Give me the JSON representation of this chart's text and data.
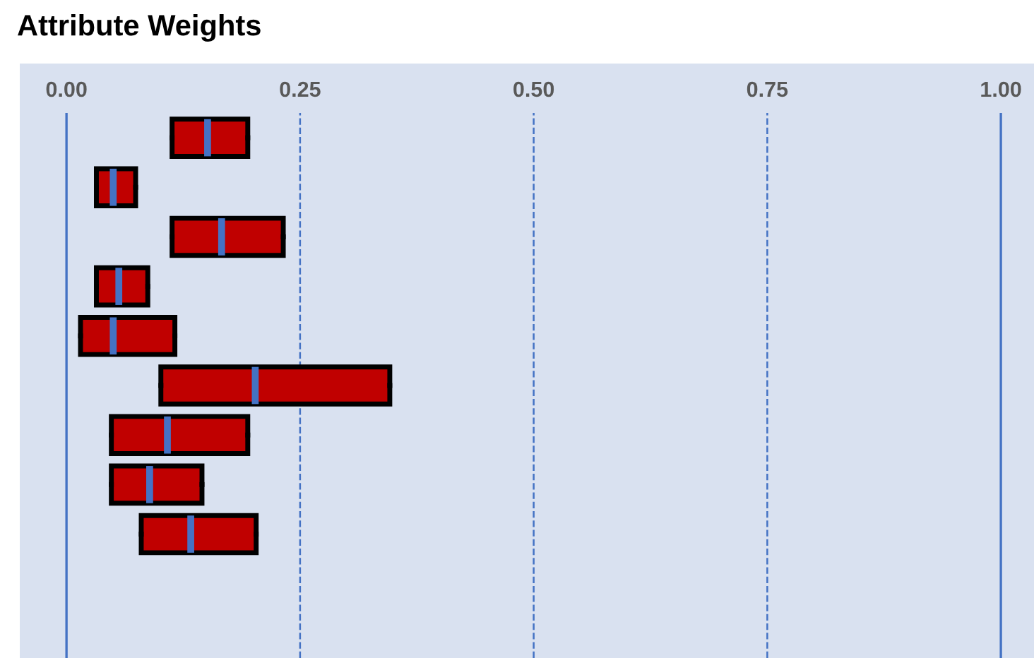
{
  "chart_data": {
    "type": "box",
    "title": "Attribute Weights",
    "orientation": "horizontal",
    "categories": [
      null,
      null,
      null,
      null,
      null,
      null,
      null,
      null,
      null,
      null,
      null
    ],
    "boxes": [
      {
        "low": 0.113,
        "q1": 0.113,
        "median": 0.151,
        "q3": 0.194,
        "high": 0.194
      },
      {
        "low": 0.032,
        "q1": 0.032,
        "median": 0.05,
        "q3": 0.074,
        "high": 0.074
      },
      {
        "low": 0.113,
        "q1": 0.113,
        "median": 0.166,
        "q3": 0.232,
        "high": 0.232
      },
      {
        "low": 0.032,
        "q1": 0.032,
        "median": 0.056,
        "q3": 0.087,
        "high": 0.087
      },
      {
        "low": 0.015,
        "q1": 0.015,
        "median": 0.05,
        "q3": 0.116,
        "high": 0.116
      },
      {
        "low": 0.101,
        "q1": 0.101,
        "median": 0.202,
        "q3": 0.346,
        "high": 0.346
      },
      {
        "low": 0.048,
        "q1": 0.048,
        "median": 0.108,
        "q3": 0.194,
        "high": 0.194
      },
      {
        "low": 0.048,
        "q1": 0.048,
        "median": 0.089,
        "q3": 0.145,
        "high": 0.145
      },
      {
        "low": 0.08,
        "q1": 0.08,
        "median": 0.133,
        "q3": 0.203,
        "high": 0.203
      },
      null,
      null
    ],
    "color": "#c00000",
    "xlim": [
      -0.05,
      1.04
    ],
    "xticks": [
      {
        "value": 0,
        "label": "0.00"
      },
      {
        "value": 0.25,
        "label": "0.25"
      },
      {
        "value": 0.5,
        "label": "0.50"
      },
      {
        "value": 0.75,
        "label": "0.75"
      },
      {
        "value": 1,
        "label": "1.00"
      }
    ],
    "grid": "x",
    "line_style": "dashed"
  }
}
